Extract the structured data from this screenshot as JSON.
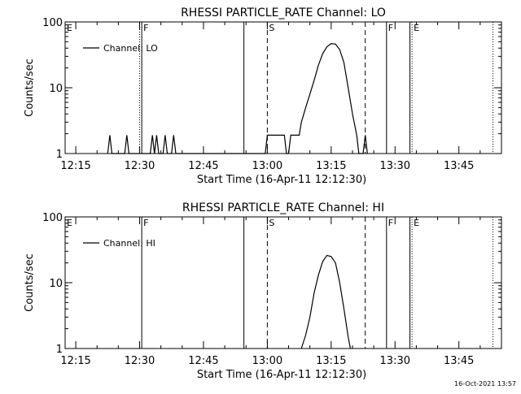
{
  "footer_timestamp": "16-Oct-2021 13:57",
  "chart_data": [
    {
      "type": "line",
      "title": "RHESSI PARTICLE_RATE Channel: LO",
      "xlabel": "Start Time (16-Apr-11 12:12:30)",
      "ylabel": "Counts/sec",
      "y_scale": "log",
      "ylim": [
        1,
        100
      ],
      "xlim": [
        "12:12:30",
        "13:55:00"
      ],
      "x_ticks": [
        "12:15",
        "12:30",
        "12:45",
        "13:00",
        "13:15",
        "13:30",
        "13:45"
      ],
      "y_ticks": [
        "1",
        "10",
        "100"
      ],
      "legend": {
        "placement": "top-left",
        "entries": [
          "Channel: LO"
        ]
      },
      "markers": [
        {
          "time": "12:12:30",
          "label": "E",
          "style": "none"
        },
        {
          "time": "12:30:00",
          "label": "",
          "style": "dotted"
        },
        {
          "time": "12:30:30",
          "label": "F",
          "style": "solid"
        },
        {
          "time": "12:54:30",
          "label": "",
          "style": "solid"
        },
        {
          "time": "13:00:00",
          "label": "S",
          "style": "dashed"
        },
        {
          "time": "13:23:00",
          "label": "",
          "style": "dashed"
        },
        {
          "time": "13:28:00",
          "label": "F",
          "style": "solid"
        },
        {
          "time": "13:33:30",
          "label": "",
          "style": "solid"
        },
        {
          "time": "13:34:00",
          "label": "E",
          "style": "dotted"
        },
        {
          "time": "13:53:00",
          "label": "",
          "style": "dotted"
        }
      ],
      "series": [
        {
          "name": "Channel: LO",
          "points": [
            [
              "12:22:30",
              1.0
            ],
            [
              "12:23:00",
              1.9
            ],
            [
              "12:23:30",
              1.0
            ],
            [
              "12:26:30",
              1.0
            ],
            [
              "12:27:00",
              1.9
            ],
            [
              "12:27:30",
              1.0
            ],
            [
              "12:32:30",
              1.0
            ],
            [
              "12:33:00",
              1.9
            ],
            [
              "12:33:30",
              1.0
            ],
            [
              "12:34:00",
              1.9
            ],
            [
              "12:34:30",
              1.0
            ],
            [
              "12:35:30",
              1.0
            ],
            [
              "12:36:00",
              1.9
            ],
            [
              "12:36:30",
              1.0
            ],
            [
              "12:37:30",
              1.0
            ],
            [
              "12:38:00",
              1.9
            ],
            [
              "12:38:30",
              1.0
            ],
            [
              "12:59:30",
              1.0
            ],
            [
              "13:00:00",
              1.9
            ],
            [
              "13:04:00",
              1.9
            ],
            [
              "13:04:30",
              1.0
            ],
            [
              "13:05:00",
              1.0
            ],
            [
              "13:05:30",
              1.9
            ],
            [
              "13:07:30",
              1.9
            ],
            [
              "13:08:00",
              3.0
            ],
            [
              "13:09:00",
              5.0
            ],
            [
              "13:10:00",
              8.0
            ],
            [
              "13:11:00",
              13.0
            ],
            [
              "13:12:00",
              22.0
            ],
            [
              "13:13:00",
              33.0
            ],
            [
              "13:14:00",
              42.0
            ],
            [
              "13:15:00",
              47.0
            ],
            [
              "13:16:00",
              46.0
            ],
            [
              "13:17:00",
              38.0
            ],
            [
              "13:18:00",
              24.0
            ],
            [
              "13:19:00",
              10.0
            ],
            [
              "13:20:00",
              4.0
            ],
            [
              "13:21:00",
              1.9
            ],
            [
              "13:21:30",
              1.0
            ],
            [
              "13:22:30",
              1.0
            ],
            [
              "13:23:00",
              1.9
            ],
            [
              "13:23:30",
              1.0
            ]
          ]
        }
      ]
    },
    {
      "type": "line",
      "title": "RHESSI PARTICLE_RATE Channel: HI",
      "xlabel": "Start Time (16-Apr-11 12:12:30)",
      "ylabel": "Counts/sec",
      "y_scale": "log",
      "ylim": [
        1,
        100
      ],
      "xlim": [
        "12:12:30",
        "13:55:00"
      ],
      "x_ticks": [
        "12:15",
        "12:30",
        "12:45",
        "13:00",
        "13:15",
        "13:30",
        "13:45"
      ],
      "y_ticks": [
        "1",
        "10",
        "100"
      ],
      "legend": {
        "placement": "top-left",
        "entries": [
          "Channel: HI"
        ]
      },
      "markers": [
        {
          "time": "12:12:30",
          "label": "E",
          "style": "none"
        },
        {
          "time": "12:30:30",
          "label": "F",
          "style": "solid"
        },
        {
          "time": "12:54:30",
          "label": "",
          "style": "solid"
        },
        {
          "time": "13:00:00",
          "label": "S",
          "style": "dashed"
        },
        {
          "time": "13:23:00",
          "label": "",
          "style": "dashed"
        },
        {
          "time": "13:28:00",
          "label": "F",
          "style": "solid"
        },
        {
          "time": "13:33:30",
          "label": "",
          "style": "solid"
        },
        {
          "time": "13:34:00",
          "label": "E",
          "style": "dotted"
        },
        {
          "time": "13:53:00",
          "label": "",
          "style": "dotted"
        }
      ],
      "series": [
        {
          "name": "Channel: HI",
          "points": [
            [
              "13:08:00",
              1.0
            ],
            [
              "13:09:00",
              1.6
            ],
            [
              "13:10:00",
              3.0
            ],
            [
              "13:11:00",
              7.0
            ],
            [
              "13:12:00",
              13.0
            ],
            [
              "13:13:00",
              21.0
            ],
            [
              "13:14:00",
              26.0
            ],
            [
              "13:15:00",
              25.0
            ],
            [
              "13:16:00",
              20.0
            ],
            [
              "13:17:00",
              10.0
            ],
            [
              "13:18:00",
              4.0
            ],
            [
              "13:19:00",
              1.5
            ],
            [
              "13:19:30",
              1.0
            ]
          ]
        }
      ]
    }
  ]
}
